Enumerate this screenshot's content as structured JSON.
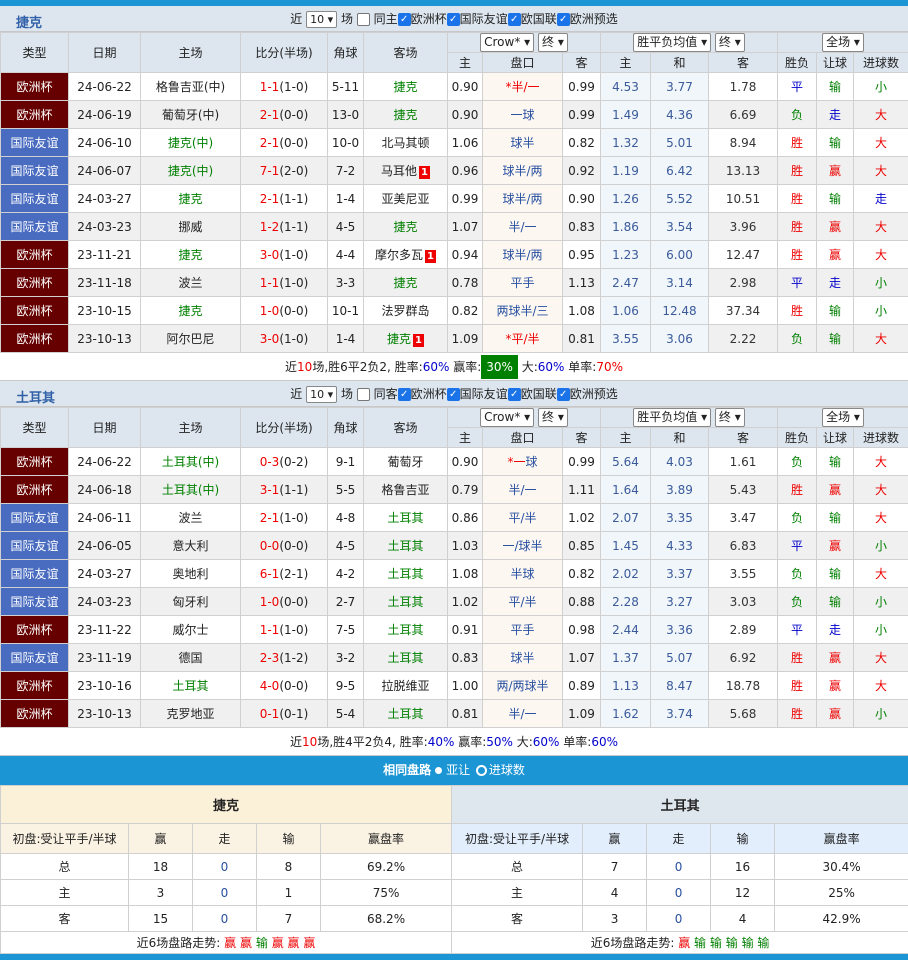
{
  "sections": [
    {
      "team": "捷克",
      "filter": {
        "near": "近",
        "count": "10",
        "unit": "场",
        "same": "同主",
        "same_checked": false,
        "leagues": [
          "欧洲杯",
          "国际友谊",
          "欧国联",
          "欧洲预选"
        ]
      },
      "summary": {
        "a": "近",
        "n": "10",
        "b": "场,胜6平2负2, 胜率:",
        "wr": "60%",
        "c": " 赢率:",
        "ar": "30%",
        "d": " 大:",
        "br": "60%",
        "e": " 单率:",
        "or": "70%"
      },
      "rows": [
        [
          "欧洲杯",
          "24-06-22",
          "格鲁吉亚(中)",
          "1-1",
          "(1-0)",
          "5-11",
          "捷克",
          "",
          "0.90",
          "*半/一",
          "0.99",
          "4.53",
          "3.77",
          "1.78",
          "平",
          "输",
          "小"
        ],
        [
          "欧洲杯",
          "24-06-19",
          "葡萄牙(中)",
          "2-1",
          "(0-0)",
          "13-0",
          "捷克",
          "",
          "0.90",
          "一球",
          "0.99",
          "1.49",
          "4.36",
          "6.69",
          "负",
          "走",
          "大"
        ],
        [
          "国际友谊",
          "24-06-10",
          "捷克(中)",
          "2-1",
          "(0-0)",
          "10-0",
          "北马其顿",
          "",
          "1.06",
          "球半",
          "0.82",
          "1.32",
          "5.01",
          "8.94",
          "胜",
          "输",
          "大"
        ],
        [
          "国际友谊",
          "24-06-07",
          "捷克(中)",
          "7-1",
          "(2-0)",
          "7-2",
          "马耳他",
          "1",
          "0.96",
          "球半/两",
          "0.92",
          "1.19",
          "6.42",
          "13.13",
          "胜",
          "赢",
          "大"
        ],
        [
          "国际友谊",
          "24-03-27",
          "捷克",
          "2-1",
          "(1-1)",
          "1-4",
          "亚美尼亚",
          "",
          "0.99",
          "球半/两",
          "0.90",
          "1.26",
          "5.52",
          "10.51",
          "胜",
          "输",
          "走"
        ],
        [
          "国际友谊",
          "24-03-23",
          "挪威",
          "1-2",
          "(1-1)",
          "4-5",
          "捷克",
          "",
          "1.07",
          "半/一",
          "0.83",
          "1.86",
          "3.54",
          "3.96",
          "胜",
          "赢",
          "大"
        ],
        [
          "欧洲杯",
          "23-11-21",
          "捷克",
          "3-0",
          "(1-0)",
          "4-4",
          "摩尔多瓦",
          "1",
          "0.94",
          "球半/两",
          "0.95",
          "1.23",
          "6.00",
          "12.47",
          "胜",
          "赢",
          "大"
        ],
        [
          "欧洲杯",
          "23-11-18",
          "波兰",
          "1-1",
          "(1-0)",
          "3-3",
          "捷克",
          "",
          "0.78",
          "平手",
          "1.13",
          "2.47",
          "3.14",
          "2.98",
          "平",
          "走",
          "小"
        ],
        [
          "欧洲杯",
          "23-10-15",
          "捷克",
          "1-0",
          "(0-0)",
          "10-1",
          "法罗群岛",
          "",
          "0.82",
          "两球半/三",
          "1.08",
          "1.06",
          "12.48",
          "37.34",
          "胜",
          "输",
          "小"
        ],
        [
          "欧洲杯",
          "23-10-13",
          "阿尔巴尼",
          "3-0",
          "(1-0)",
          "1-4",
          "捷克",
          "1",
          "1.09",
          "*平/半",
          "0.81",
          "3.55",
          "3.06",
          "2.22",
          "负",
          "输",
          "大"
        ]
      ]
    },
    {
      "team": "土耳其",
      "filter": {
        "near": "近",
        "count": "10",
        "unit": "场",
        "same": "同客",
        "same_checked": false,
        "leagues": [
          "欧洲杯",
          "国际友谊",
          "欧国联",
          "欧洲预选"
        ]
      },
      "summary": {
        "a": "近",
        "n": "10",
        "b": "场,胜4平2负4, 胜率:",
        "wr": "40%",
        "c": " 赢率:",
        "ar": "50%",
        "d": " 大:",
        "br": "60%",
        "e": " 单率:",
        "or": "60%"
      },
      "rows": [
        [
          "欧洲杯",
          "24-06-22",
          "土耳其(中)",
          "0-3",
          "(0-2)",
          "9-1",
          "葡萄牙",
          "",
          "0.90",
          "*一球",
          "0.99",
          "5.64",
          "4.03",
          "1.61",
          "负",
          "输",
          "大"
        ],
        [
          "欧洲杯",
          "24-06-18",
          "土耳其(中)",
          "3-1",
          "(1-1)",
          "5-5",
          "格鲁吉亚",
          "",
          "0.79",
          "半/一",
          "1.11",
          "1.64",
          "3.89",
          "5.43",
          "胜",
          "赢",
          "大"
        ],
        [
          "国际友谊",
          "24-06-11",
          "波兰",
          "2-1",
          "(1-0)",
          "4-8",
          "土耳其",
          "",
          "0.86",
          "平/半",
          "1.02",
          "2.07",
          "3.35",
          "3.47",
          "负",
          "输",
          "大"
        ],
        [
          "国际友谊",
          "24-06-05",
          "意大利",
          "0-0",
          "(0-0)",
          "4-5",
          "土耳其",
          "",
          "1.03",
          "一/球半",
          "0.85",
          "1.45",
          "4.33",
          "6.83",
          "平",
          "赢",
          "小"
        ],
        [
          "国际友谊",
          "24-03-27",
          "奥地利",
          "6-1",
          "(2-1)",
          "4-2",
          "土耳其",
          "",
          "1.08",
          "半球",
          "0.82",
          "2.02",
          "3.37",
          "3.55",
          "负",
          "输",
          "大"
        ],
        [
          "国际友谊",
          "24-03-23",
          "匈牙利",
          "1-0",
          "(0-0)",
          "2-7",
          "土耳其",
          "",
          "1.02",
          "平/半",
          "0.88",
          "2.28",
          "3.27",
          "3.03",
          "负",
          "输",
          "小"
        ],
        [
          "欧洲杯",
          "23-11-22",
          "威尔士",
          "1-1",
          "(1-0)",
          "7-5",
          "土耳其",
          "",
          "0.91",
          "平手",
          "0.98",
          "2.44",
          "3.36",
          "2.89",
          "平",
          "走",
          "小"
        ],
        [
          "国际友谊",
          "23-11-19",
          "德国",
          "2-3",
          "(1-2)",
          "3-2",
          "土耳其",
          "",
          "0.83",
          "球半",
          "1.07",
          "1.37",
          "5.07",
          "6.92",
          "胜",
          "赢",
          "大"
        ],
        [
          "欧洲杯",
          "23-10-16",
          "土耳其",
          "4-0",
          "(0-0)",
          "9-5",
          "拉脱维亚",
          "",
          "1.00",
          "两/两球半",
          "0.89",
          "1.13",
          "8.47",
          "18.78",
          "胜",
          "赢",
          "大"
        ],
        [
          "欧洲杯",
          "23-10-13",
          "克罗地亚",
          "0-1",
          "(0-1)",
          "5-4",
          "土耳其",
          "",
          "0.81",
          "半/一",
          "1.09",
          "1.62",
          "3.74",
          "5.68",
          "胜",
          "赢",
          "小"
        ]
      ]
    }
  ],
  "headers": {
    "type": "类型",
    "date": "日期",
    "home": "主场",
    "score": "比分(半场)",
    "corner": "角球",
    "away": "客场",
    "company": "Crow*",
    "final": "终",
    "avg": "胜平负均值",
    "final2": "终",
    "period": "全场",
    "h": "主",
    "line": "盘口",
    "a": "客",
    "h2": "主",
    "d": "和",
    "a2": "客",
    "res": "胜负",
    "ah": "让球",
    "ou": "进球数"
  },
  "same_route": {
    "title": "相同盘路",
    "opt1": "亚让",
    "opt2": "进球数",
    "selected": "进球数",
    "teams": [
      {
        "name": "捷克",
        "cols": [
          "初盘:受让平手/半球",
          "赢",
          "走",
          "输",
          "赢盘率"
        ],
        "rows": [
          [
            "总",
            "18",
            "0",
            "8",
            "69.2%"
          ],
          [
            "主",
            "3",
            "0",
            "1",
            "75%"
          ],
          [
            "客",
            "15",
            "0",
            "7",
            "68.2%"
          ]
        ],
        "trend_label": "近6场盘路走势:",
        "trend": [
          "赢",
          "赢",
          "输",
          "赢",
          "赢",
          "赢"
        ]
      },
      {
        "name": "土耳其",
        "cols": [
          "初盘:受让平手/半球",
          "赢",
          "走",
          "输",
          "赢盘率"
        ],
        "rows": [
          [
            "总",
            "7",
            "0",
            "16",
            "30.4%"
          ],
          [
            "主",
            "4",
            "0",
            "12",
            "25%"
          ],
          [
            "客",
            "3",
            "0",
            "4",
            "42.9%"
          ]
        ],
        "trend_label": "近6场盘路走势:",
        "trend": [
          "赢",
          "输",
          "输",
          "输",
          "输",
          "输"
        ]
      }
    ]
  },
  "colors": {
    "accent": "#1b95d4",
    "euro": "#660000",
    "friendly": "#4a6cc0",
    "win": "#ee0000",
    "draw": "#0000cc",
    "loss": "#008000"
  }
}
